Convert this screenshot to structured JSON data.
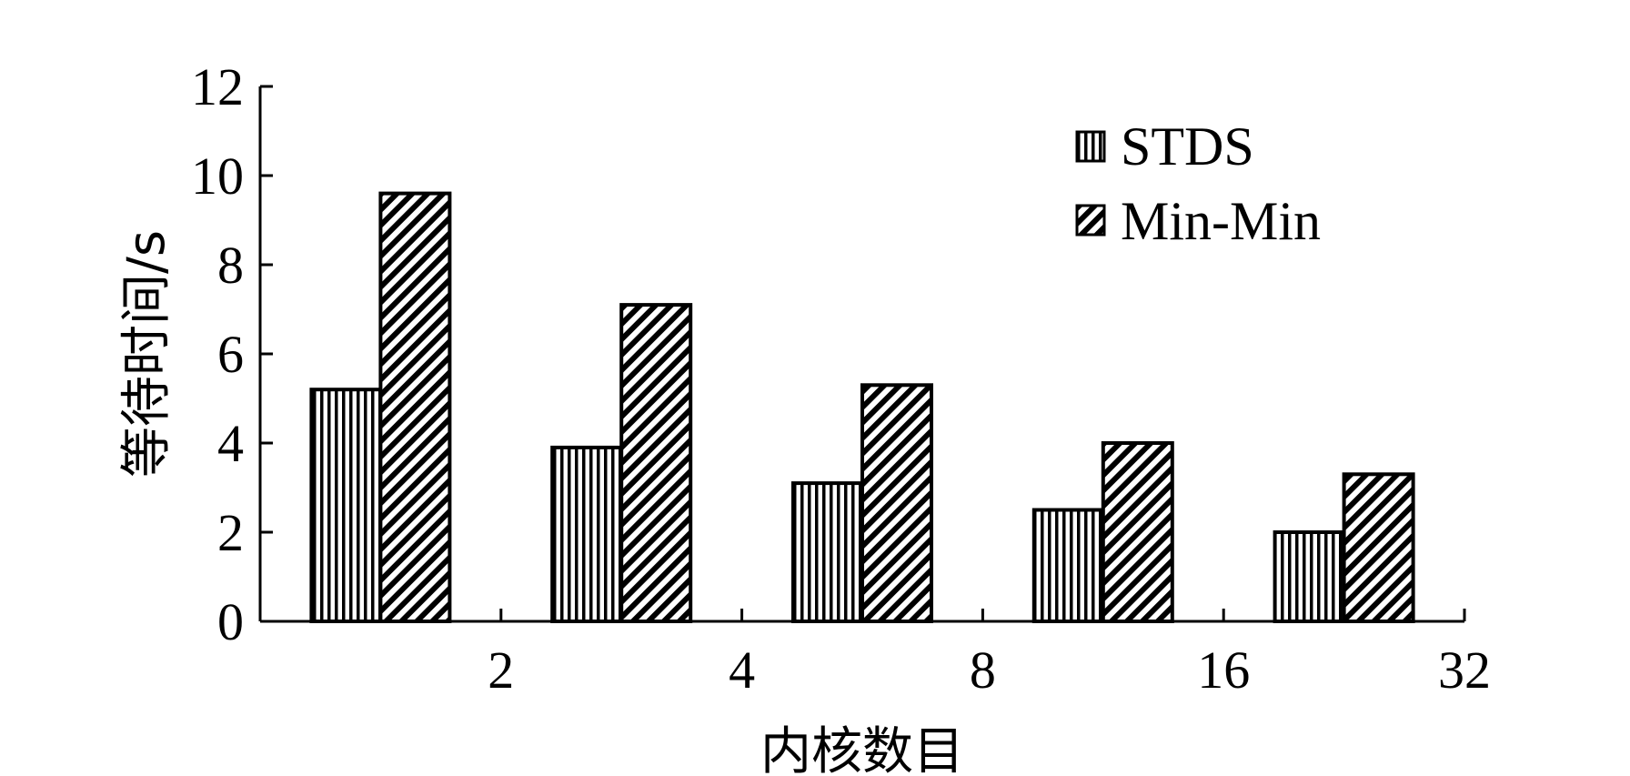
{
  "chart_data": {
    "type": "bar",
    "categories": [
      "2",
      "4",
      "8",
      "16",
      "32"
    ],
    "series": [
      {
        "name": "STDS",
        "values": [
          5.2,
          3.9,
          3.1,
          2.5,
          2.0
        ]
      },
      {
        "name": "Min-Min",
        "values": [
          9.6,
          7.1,
          5.3,
          4.0,
          3.3
        ]
      }
    ],
    "xlabel": "内核数目",
    "ylabel": "等待时间/s",
    "ylim": [
      0,
      12
    ],
    "yticks": [
      0,
      2,
      4,
      6,
      8,
      10,
      12
    ],
    "legend_position": "top-right",
    "grid": false
  }
}
